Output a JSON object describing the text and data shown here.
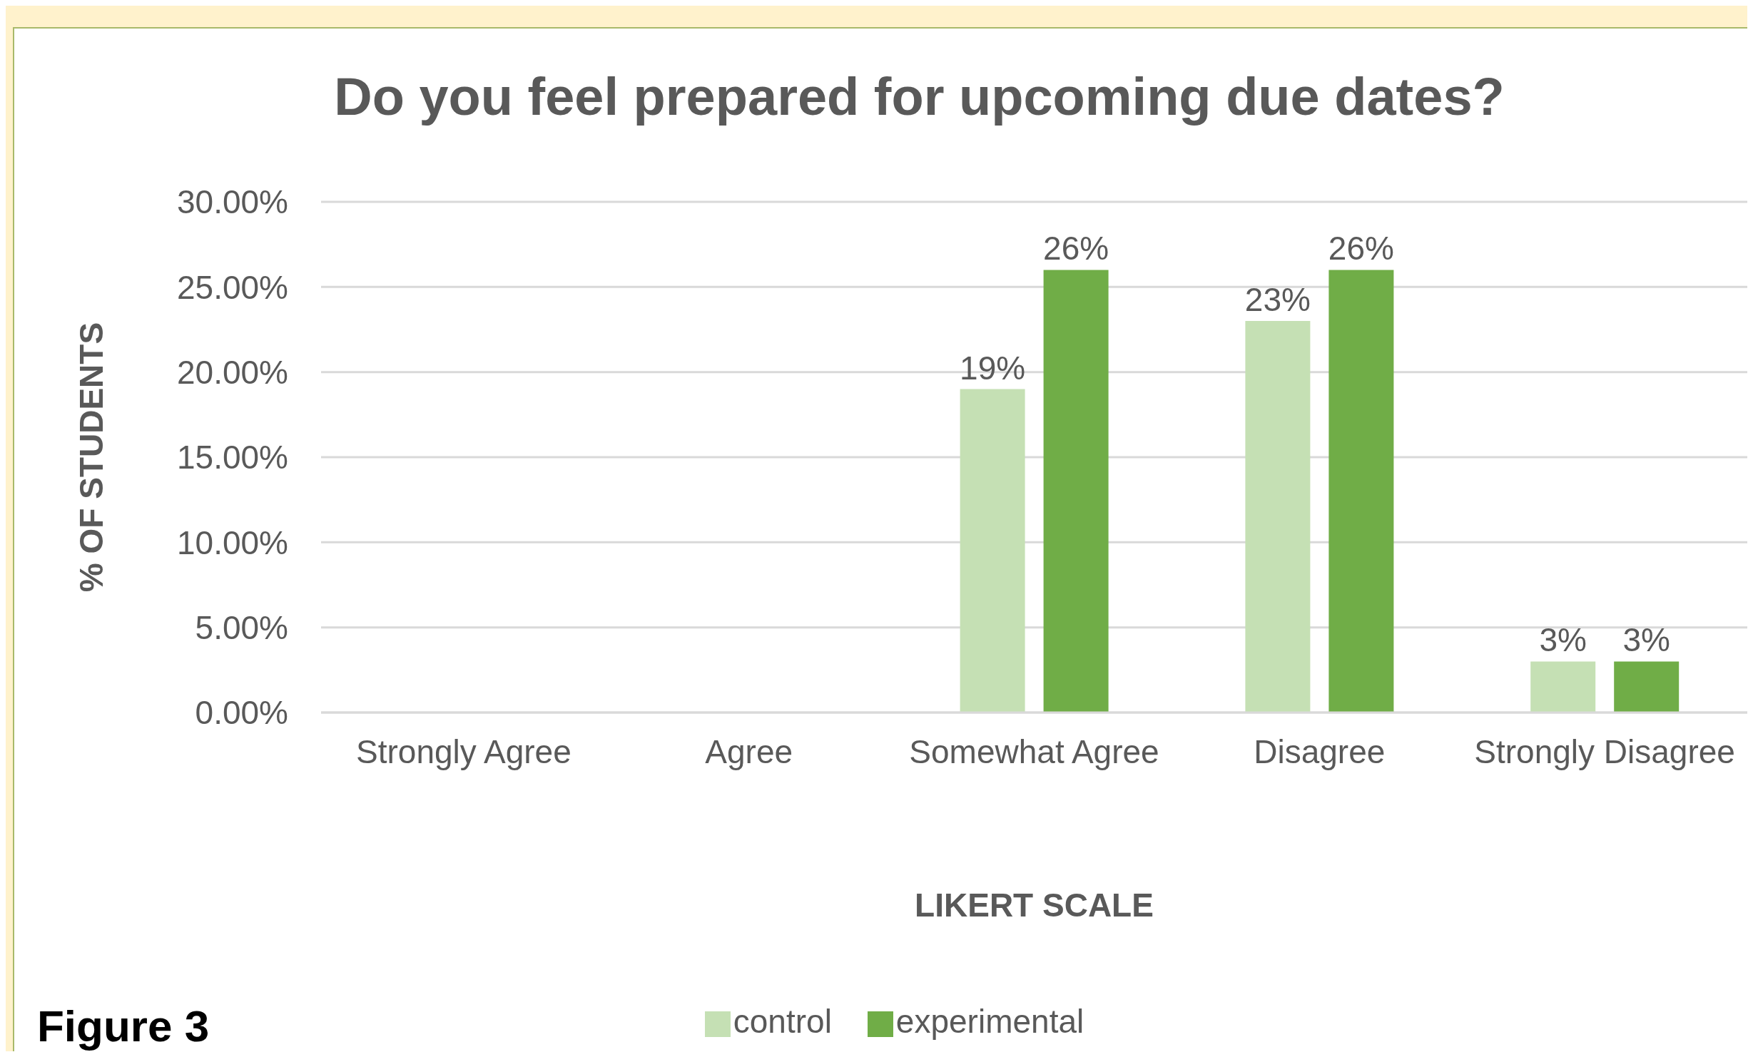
{
  "chart_data": {
    "type": "bar",
    "title": "Do you feel prepared for upcoming due dates?",
    "xlabel": "LIKERT SCALE",
    "ylabel": "% OF STUDENTS",
    "categories": [
      "Strongly Agree",
      "Agree",
      "Somewhat Agree",
      "Disagree",
      "Strongly Disagree"
    ],
    "series": [
      {
        "name": "control",
        "color": "#c5e0b4",
        "values": [
          null,
          null,
          19,
          23,
          3
        ],
        "value_labels": [
          null,
          null,
          "19%",
          "23%",
          "3%"
        ]
      },
      {
        "name": "experimental",
        "color": "#70ad47",
        "values": [
          null,
          null,
          26,
          26,
          3
        ],
        "value_labels": [
          null,
          null,
          "26%",
          "26%",
          "3%"
        ]
      }
    ],
    "ylim": [
      0,
      30
    ],
    "yticks": [
      {
        "value": 0,
        "label": "0.00%"
      },
      {
        "value": 5,
        "label": "5.00%"
      },
      {
        "value": 10,
        "label": "10.00%"
      },
      {
        "value": 15,
        "label": "15.00%"
      },
      {
        "value": 20,
        "label": "20.00%"
      },
      {
        "value": 25,
        "label": "25.00%"
      },
      {
        "value": 30,
        "label": "30.00%"
      }
    ],
    "grid": "y",
    "legend": "bottom",
    "annotations": [
      "Figure 3"
    ]
  }
}
